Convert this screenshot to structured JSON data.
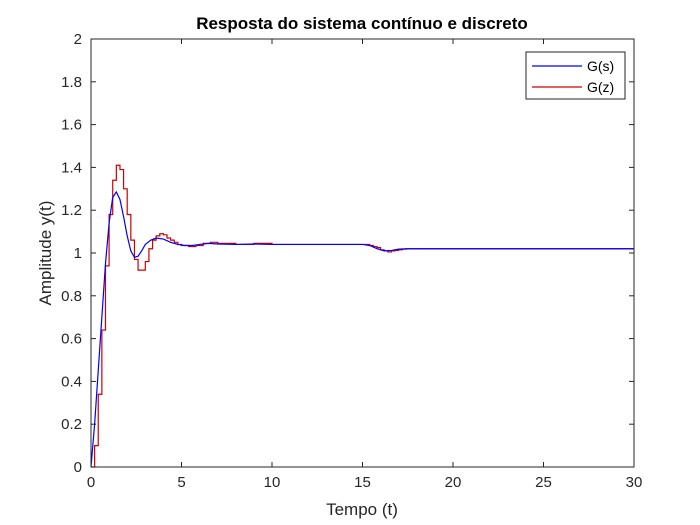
{
  "chart_data": {
    "type": "line",
    "title": "Resposta do sistema contínuo e discreto",
    "xlabel": "Tempo (t)",
    "ylabel": "Amplitude y(t)",
    "xlim": [
      0,
      30
    ],
    "ylim": [
      0,
      2
    ],
    "xticks": [
      0,
      5,
      10,
      15,
      20,
      25,
      30
    ],
    "yticks": [
      0,
      0.2,
      0.4,
      0.6,
      0.8,
      1,
      1.2,
      1.4,
      1.6,
      1.8,
      2
    ],
    "xtick_labels": [
      "0",
      "5",
      "10",
      "15",
      "20",
      "25",
      "30"
    ],
    "ytick_labels": [
      "0",
      "0.2",
      "0.4",
      "0.6",
      "0.8",
      "1",
      "1.2",
      "1.4",
      "1.6",
      "1.8",
      "2"
    ],
    "grid": false,
    "legend_position": "top-right",
    "series": [
      {
        "name": "G(s)",
        "color": "#0000ff",
        "style": "line",
        "x": [
          0,
          0.2,
          0.4,
          0.6,
          0.8,
          1.0,
          1.2,
          1.4,
          1.6,
          1.8,
          2.0,
          2.2,
          2.4,
          2.6,
          2.8,
          3.0,
          3.3,
          3.6,
          4.0,
          4.4,
          4.8,
          5.2,
          5.6,
          6.0,
          6.5,
          7.0,
          8.0,
          9.0,
          10.0,
          12.0,
          14.0,
          15.0,
          15.4,
          15.8,
          16.2,
          16.6,
          17.0,
          17.5,
          18.0,
          20.0,
          25.0,
          30.0
        ],
        "y": [
          0,
          0.2,
          0.45,
          0.7,
          0.95,
          1.14,
          1.26,
          1.285,
          1.25,
          1.17,
          1.08,
          1.01,
          0.98,
          0.985,
          1.01,
          1.04,
          1.06,
          1.07,
          1.065,
          1.05,
          1.04,
          1.035,
          1.035,
          1.04,
          1.045,
          1.042,
          1.04,
          1.042,
          1.04,
          1.04,
          1.04,
          1.04,
          1.035,
          1.02,
          1.01,
          1.012,
          1.018,
          1.02,
          1.02,
          1.02,
          1.02,
          1.02
        ]
      },
      {
        "name": "G(z)",
        "color": "#cc0000",
        "style": "step",
        "x": [
          0,
          0.2,
          0.4,
          0.6,
          0.8,
          1.0,
          1.2,
          1.4,
          1.6,
          1.8,
          2.0,
          2.2,
          2.4,
          2.6,
          2.8,
          3.0,
          3.2,
          3.4,
          3.6,
          3.8,
          4.0,
          4.2,
          4.4,
          4.6,
          4.8,
          5.0,
          5.4,
          5.8,
          6.2,
          6.6,
          7.0,
          8.0,
          9.0,
          10.0,
          12.0,
          14.0,
          15.0,
          15.4,
          15.6,
          15.8,
          16.0,
          16.2,
          16.4,
          16.6,
          16.8,
          17.0,
          17.2,
          17.4,
          17.8,
          20.0,
          25.0,
          30.0
        ],
        "y": [
          0,
          0.1,
          0.34,
          0.64,
          0.94,
          1.18,
          1.34,
          1.41,
          1.39,
          1.3,
          1.18,
          1.06,
          0.97,
          0.92,
          0.92,
          0.96,
          1.02,
          1.06,
          1.08,
          1.09,
          1.085,
          1.07,
          1.06,
          1.05,
          1.04,
          1.035,
          1.03,
          1.035,
          1.045,
          1.05,
          1.045,
          1.04,
          1.045,
          1.04,
          1.04,
          1.04,
          1.04,
          1.035,
          1.03,
          1.025,
          1.015,
          1.01,
          1.005,
          1.01,
          1.012,
          1.015,
          1.018,
          1.02,
          1.02,
          1.02,
          1.02,
          1.02
        ]
      }
    ]
  }
}
